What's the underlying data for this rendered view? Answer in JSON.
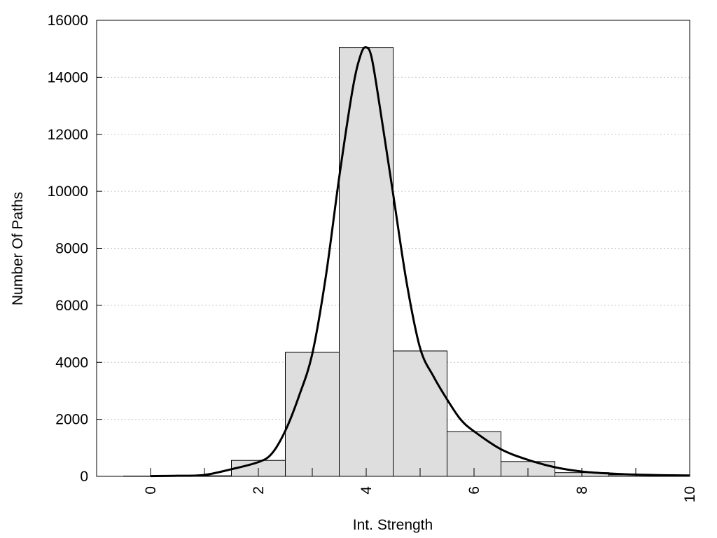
{
  "chart_data": {
    "type": "bar",
    "title": "",
    "xlabel": "Int. Strength",
    "ylabel": "Number Of Paths",
    "xlim": [
      -1,
      10
    ],
    "ylim": [
      0,
      16000
    ],
    "x_ticks": [
      0,
      2,
      4,
      6,
      8,
      10
    ],
    "y_ticks": [
      0,
      2000,
      4000,
      6000,
      8000,
      10000,
      12000,
      14000,
      16000
    ],
    "grid": "horizontal dotted",
    "bin_width": 1,
    "bins": [
      {
        "x": 0,
        "value": 10
      },
      {
        "x": 1,
        "value": 20
      },
      {
        "x": 2,
        "value": 560
      },
      {
        "x": 3,
        "value": 4350
      },
      {
        "x": 4,
        "value": 15050
      },
      {
        "x": 5,
        "value": 4400
      },
      {
        "x": 6,
        "value": 1570
      },
      {
        "x": 7,
        "value": 520
      },
      {
        "x": 8,
        "value": 130
      },
      {
        "x": 9,
        "value": 50
      }
    ],
    "curve": {
      "x": [
        0,
        0.5,
        1,
        1.5,
        2,
        2.25,
        2.5,
        2.75,
        3,
        3.25,
        3.5,
        3.75,
        3.9,
        4,
        4.1,
        4.25,
        4.5,
        4.75,
        5,
        5.25,
        5.5,
        5.75,
        6,
        6.5,
        7,
        7.5,
        8,
        8.5,
        9,
        9.5,
        10
      ],
      "y": [
        10,
        20,
        50,
        250,
        500,
        800,
        1600,
        2800,
        4300,
        7000,
        10500,
        13600,
        14800,
        15050,
        14700,
        13000,
        9900,
        6800,
        4500,
        3500,
        2700,
        2000,
        1580,
        950,
        580,
        320,
        170,
        100,
        60,
        40,
        30
      ]
    },
    "colors": {
      "bars": "#dedede",
      "bar_edge": "#000000",
      "curve": "#000000"
    }
  }
}
